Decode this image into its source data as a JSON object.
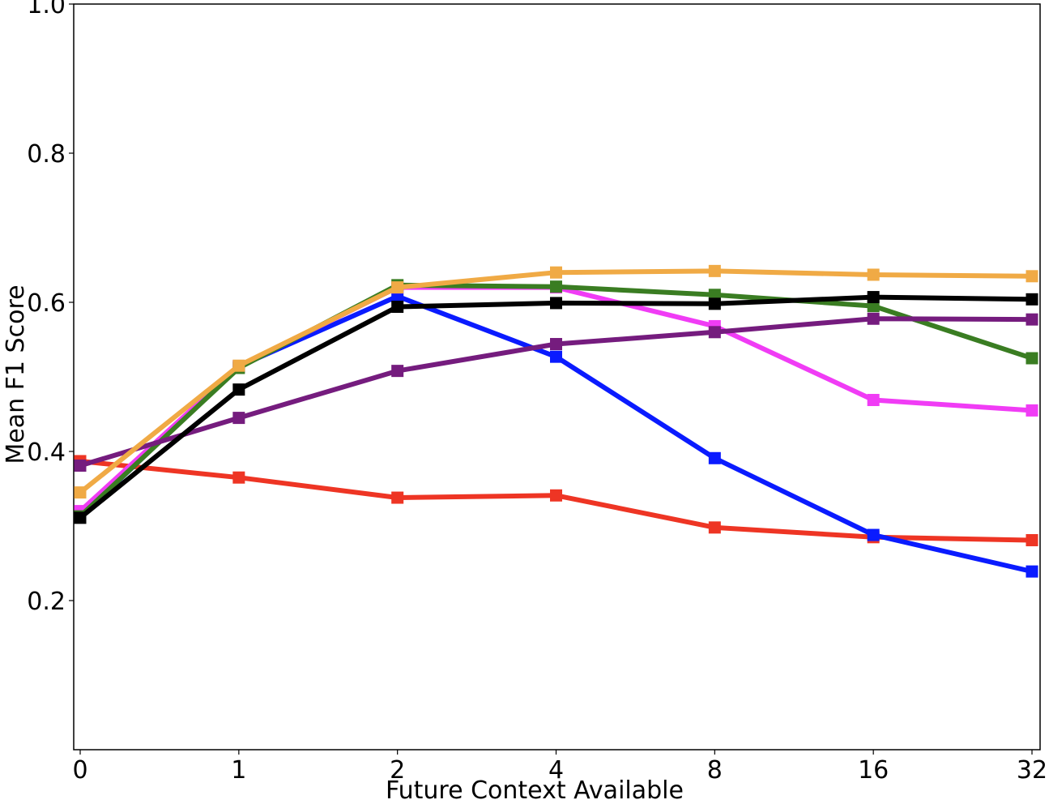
{
  "chart_data": {
    "type": "line",
    "title": "",
    "xlabel": "Future Context Available",
    "ylabel": "Mean F1 Score",
    "categories": [
      "0",
      "1",
      "2",
      "4",
      "8",
      "16",
      "32"
    ],
    "ylim": [
      0.0,
      1.0
    ],
    "yticks": [
      "0.2",
      "0.4",
      "0.6",
      "0.8",
      "1.0"
    ],
    "ytick_values": [
      0.2,
      0.4,
      0.6,
      0.8,
      1.0
    ],
    "grid": false,
    "legend": "none",
    "marker": "square",
    "series": [
      {
        "name": "red",
        "color": "#ee3524",
        "values": [
          0.387,
          0.365,
          0.338,
          0.341,
          0.298,
          0.285,
          0.281
        ]
      },
      {
        "name": "blue",
        "color": "#0a1bff",
        "values": [
          0.312,
          0.514,
          0.608,
          0.527,
          0.391,
          0.288,
          0.239
        ]
      },
      {
        "name": "magenta",
        "color": "#f03cf5",
        "values": [
          0.32,
          0.514,
          0.62,
          0.62,
          0.568,
          0.469,
          0.455
        ]
      },
      {
        "name": "green",
        "color": "#3a7d22",
        "values": [
          0.313,
          0.512,
          0.623,
          0.621,
          0.61,
          0.595,
          0.525
        ]
      },
      {
        "name": "purple",
        "color": "#751c7e",
        "values": [
          0.381,
          0.445,
          0.508,
          0.544,
          0.56,
          0.578,
          0.577
        ]
      },
      {
        "name": "orange",
        "color": "#f0aa45",
        "values": [
          0.345,
          0.515,
          0.62,
          0.64,
          0.642,
          0.637,
          0.635
        ]
      },
      {
        "name": "black",
        "color": "#000000",
        "values": [
          0.311,
          0.483,
          0.594,
          0.599,
          0.598,
          0.607,
          0.604
        ]
      }
    ]
  }
}
